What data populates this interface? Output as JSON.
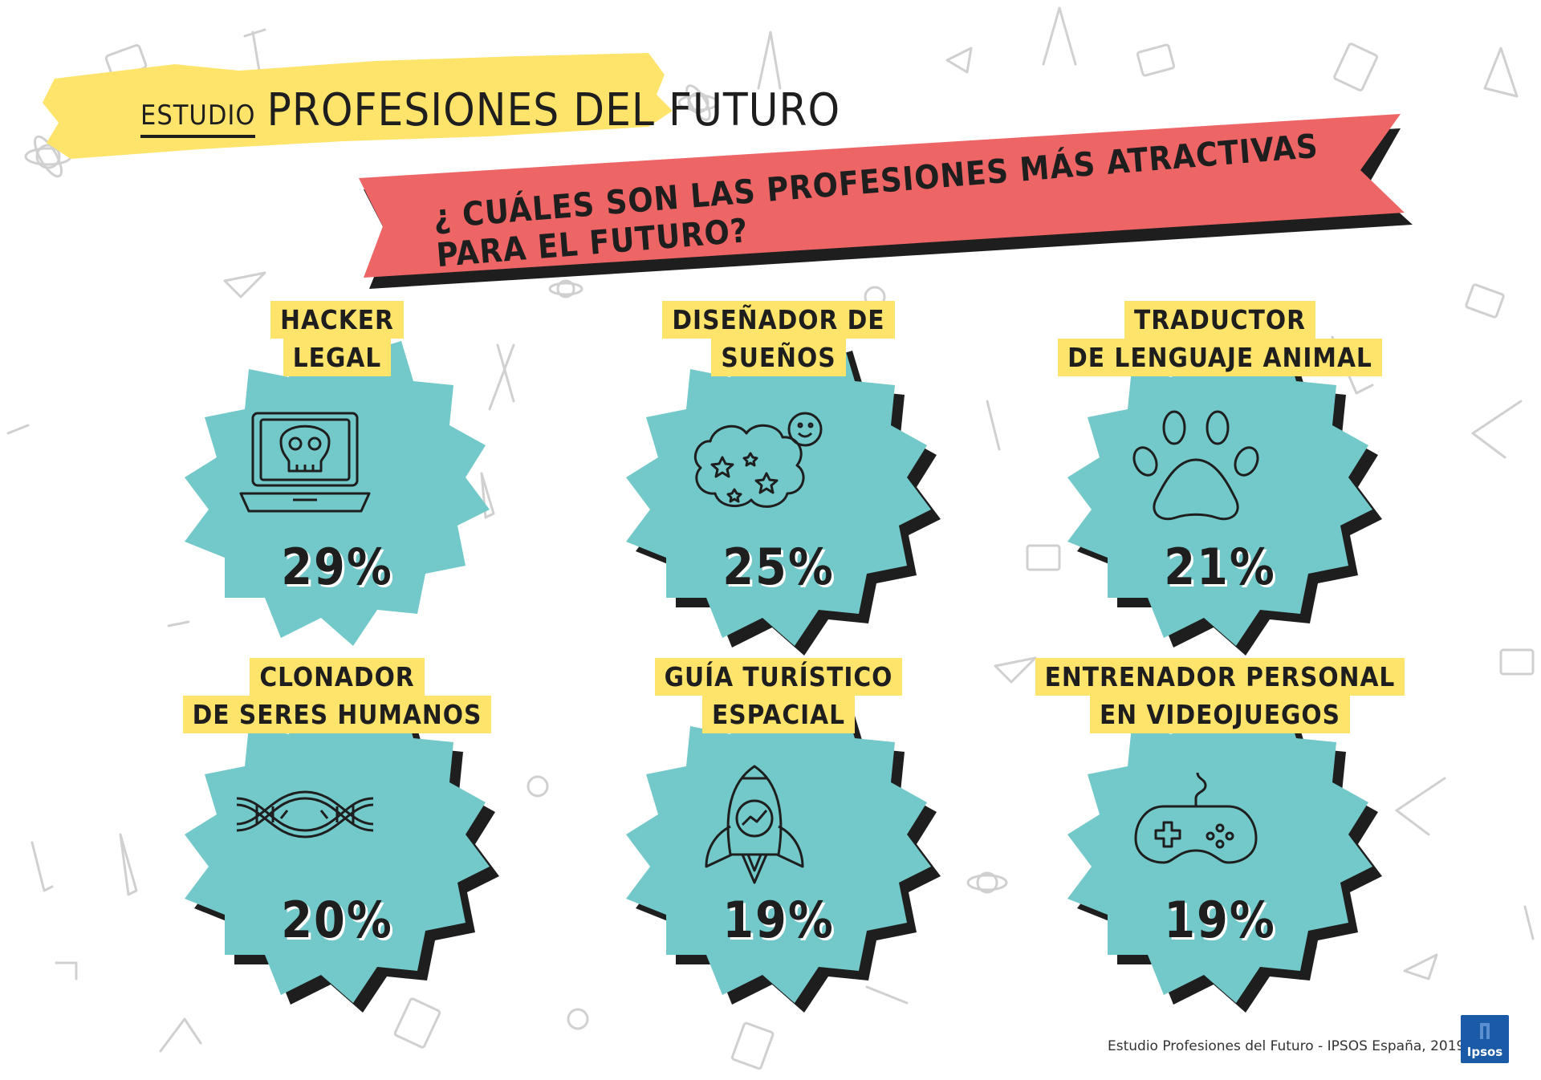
{
  "header": {
    "study_prefix": "Estudio",
    "study_title": "PROFESIONES DEL FUTURO",
    "question": "¿ Cuáles son las profesiones más atractivas para el futuro?"
  },
  "cards": [
    {
      "line1": "HACKER",
      "line2": "LEGAL",
      "percent": "29%",
      "icon": "laptop-skull-icon"
    },
    {
      "line1": "DISEÑADOR DE",
      "line2": "SUEÑOS",
      "percent": "25%",
      "icon": "dream-cloud-icon"
    },
    {
      "line1": "TRADUCTOR",
      "line2": "DE LENGUAJE ANIMAL",
      "percent": "21%",
      "icon": "paw-icon"
    },
    {
      "line1": "CLONADOR",
      "line2": "DE SERES HUMANOS",
      "percent": "20%",
      "icon": "dna-icon"
    },
    {
      "line1": "GUÍA TURÍSTICO",
      "line2": "ESPACIAL",
      "percent": "19%",
      "icon": "rocket-icon"
    },
    {
      "line1": "ENTRENADOR PERSONAL",
      "line2": "EN VIDEOJUEGOS",
      "percent": "19%",
      "icon": "gamepad-icon"
    }
  ],
  "footer": {
    "source": "Estudio Profesiones del Futuro - IPSOS España, 2019",
    "logo": "Ipsos"
  },
  "colors": {
    "teal": "#73c9c9",
    "yellow": "#ffe46b",
    "ribbon": "#ee6566",
    "ink": "#1e1e1e"
  }
}
